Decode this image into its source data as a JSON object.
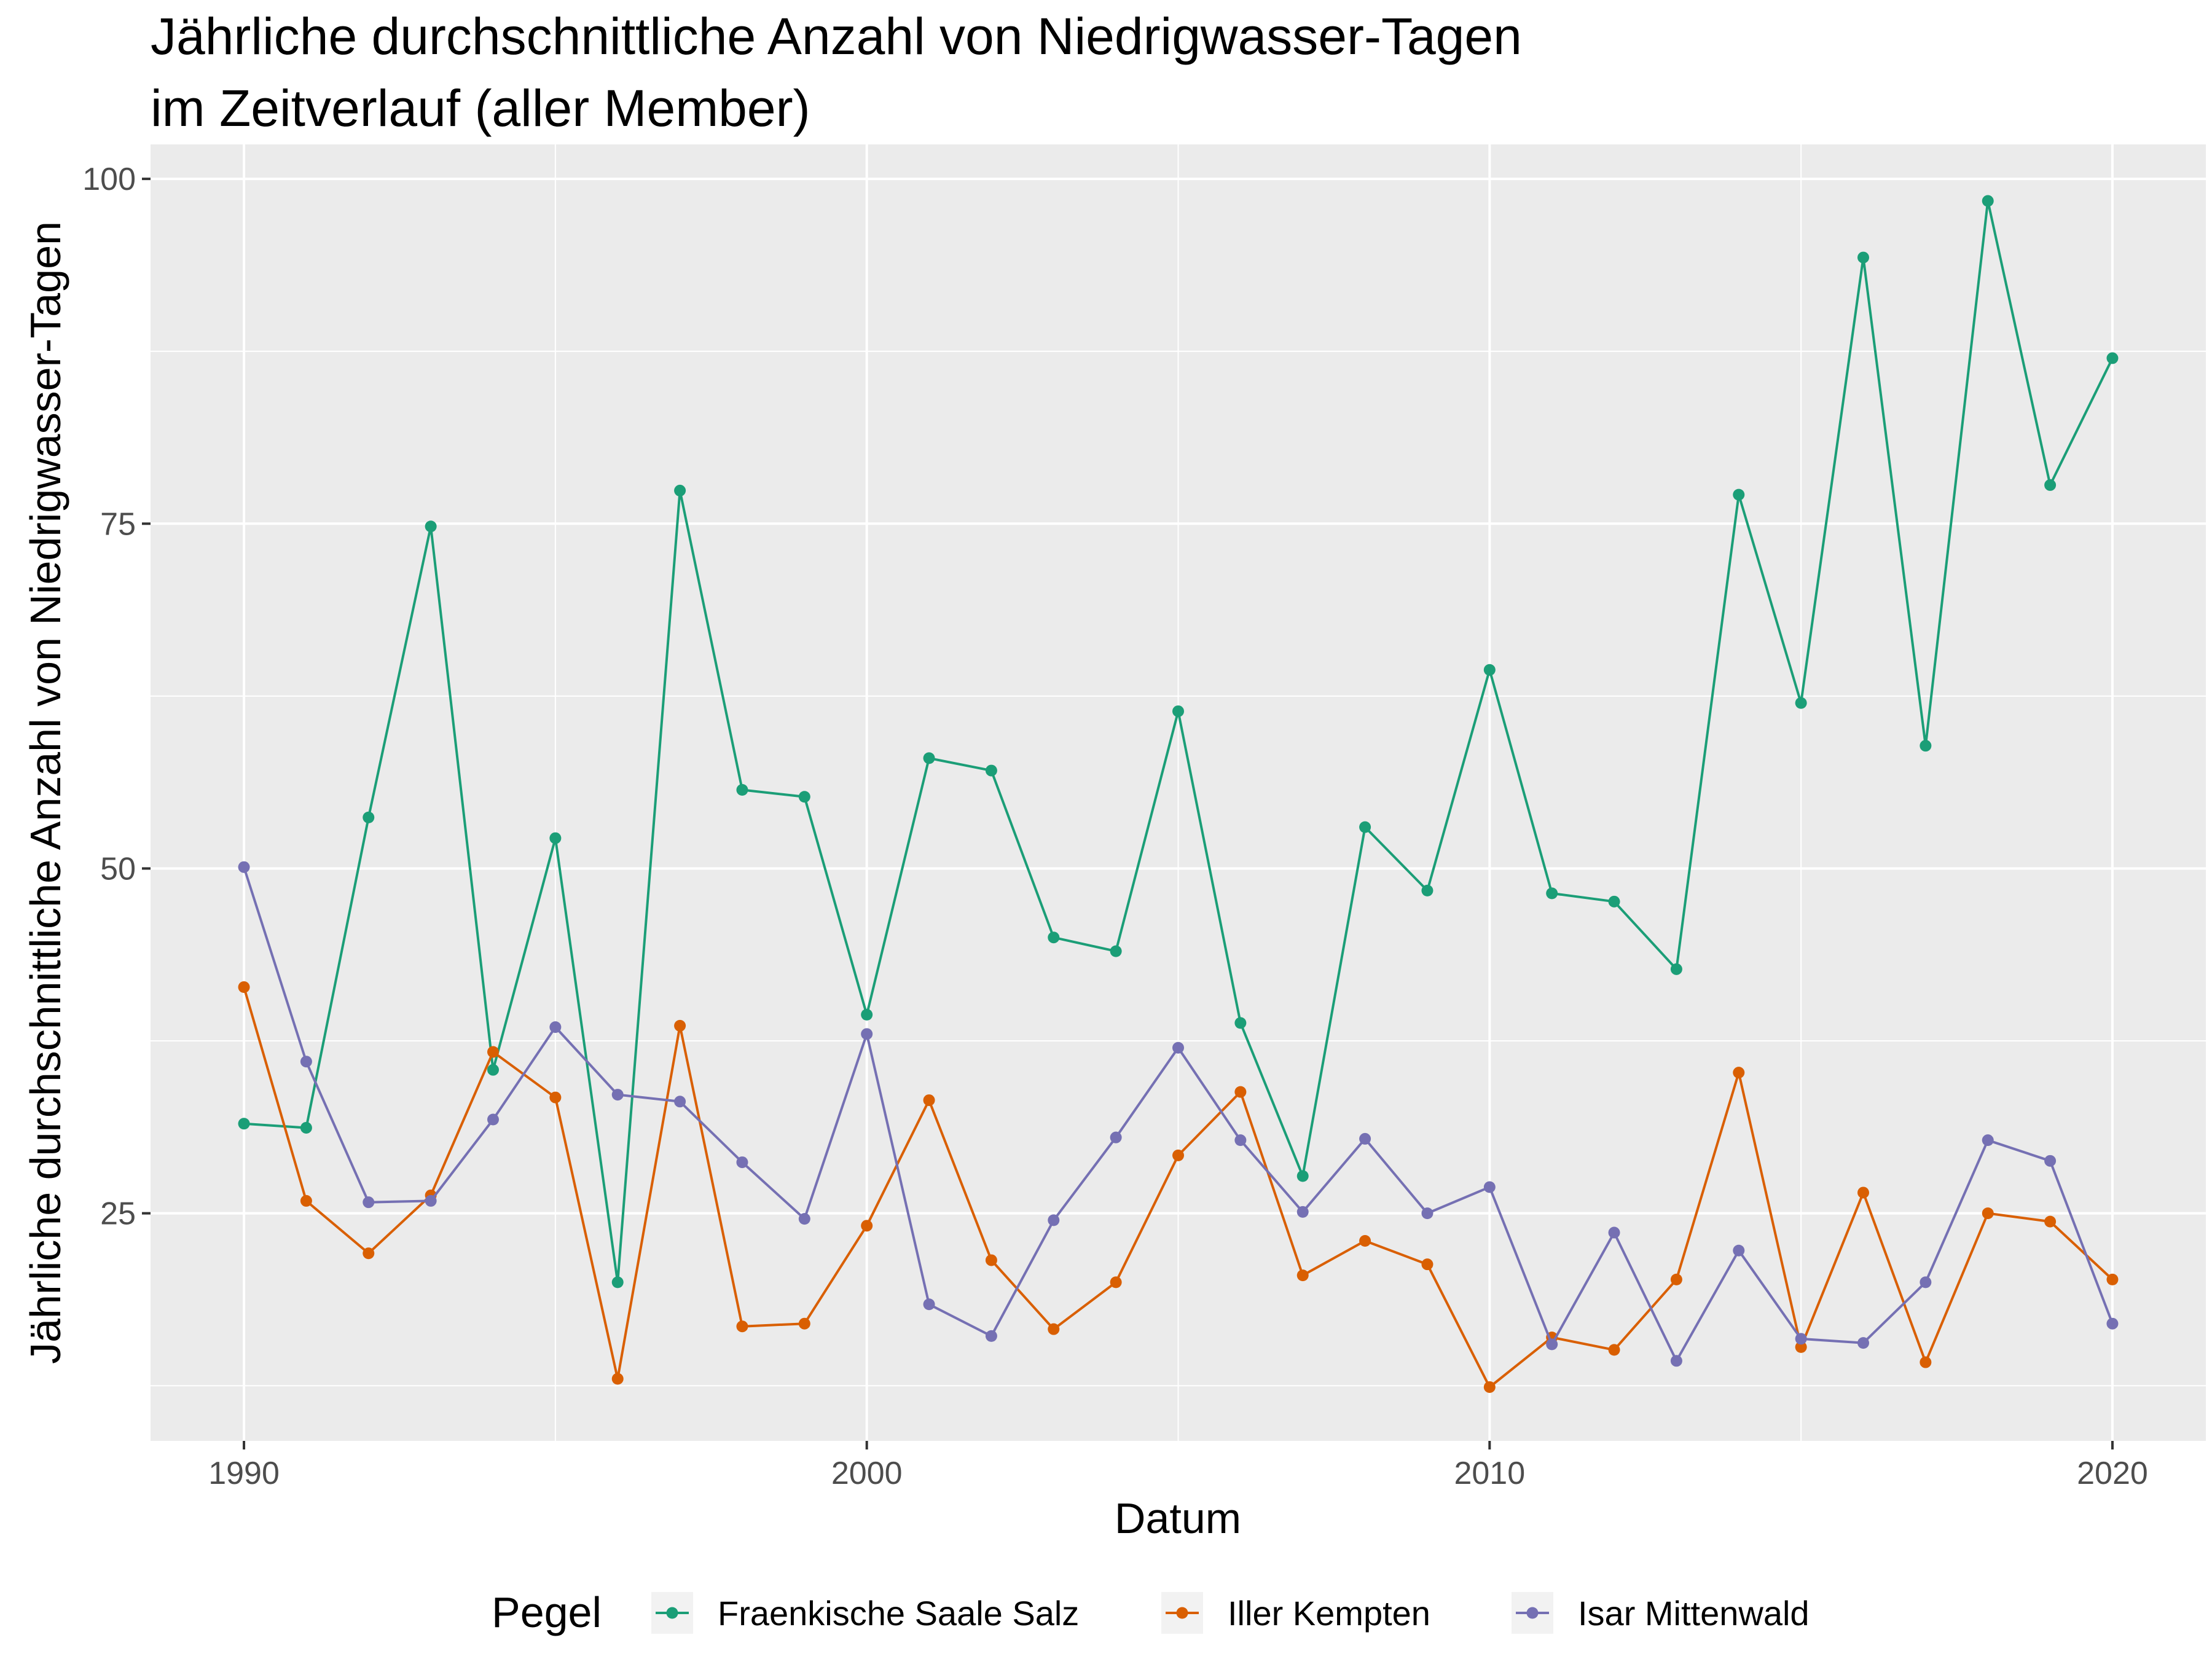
{
  "chart_data": {
    "type": "line",
    "title": "Jährliche durchschnittliche Anzahl von Niedrigwasser-Tagen",
    "subtitle": "im Zeitverlauf (aller Member)",
    "xlabel": "Datum",
    "ylabel": "Jährliche durchschnittliche Anzahl von Niedrigwasser-Tagen",
    "xlim": [
      1988.5,
      2021.5
    ],
    "ylim": [
      8.5,
      102.5
    ],
    "x_ticks": [
      1990,
      2000,
      2010,
      2020
    ],
    "x_tick_labels": [
      "1990",
      "2000",
      "2010",
      "2020"
    ],
    "y_ticks": [
      25,
      50,
      75,
      100
    ],
    "y_tick_labels": [
      "25",
      "50",
      "75",
      "100"
    ],
    "grid": true,
    "legend": {
      "title": "Pegel",
      "position": "bottom"
    },
    "x": [
      1990,
      1991,
      1992,
      1993,
      1994,
      1995,
      1996,
      1997,
      1998,
      1999,
      2000,
      2001,
      2002,
      2003,
      2004,
      2005,
      2006,
      2007,
      2008,
      2009,
      2010,
      2011,
      2012,
      2013,
      2014,
      2015,
      2016,
      2017,
      2018,
      2019,
      2020
    ],
    "series": [
      {
        "name": "Fraenkische Saale Salz",
        "color": "#1b9e77",
        "values": [
          31.5,
          31.2,
          53.7,
          74.8,
          35.4,
          52.2,
          20.0,
          77.4,
          55.7,
          55.2,
          39.4,
          58.0,
          57.1,
          45.0,
          44.0,
          61.4,
          38.8,
          27.7,
          53.0,
          48.4,
          64.4,
          48.2,
          47.6,
          42.7,
          77.1,
          62.0,
          94.3,
          58.9,
          98.4,
          77.8,
          87.0
        ]
      },
      {
        "name": "Iller Kempten",
        "color": "#d95f02",
        "values": [
          41.4,
          25.9,
          22.1,
          26.3,
          36.7,
          33.4,
          13.0,
          38.6,
          16.8,
          17.0,
          24.1,
          33.2,
          21.6,
          16.6,
          20.0,
          29.2,
          33.8,
          20.5,
          23.0,
          21.3,
          12.4,
          16.0,
          15.1,
          20.2,
          35.2,
          15.3,
          26.5,
          14.2,
          25.0,
          24.4,
          20.2
        ]
      },
      {
        "name": "Isar Mittenwald",
        "color": "#7570b3",
        "values": [
          50.1,
          36.0,
          25.8,
          25.9,
          31.8,
          38.5,
          33.6,
          33.1,
          28.7,
          24.6,
          38.0,
          18.4,
          16.1,
          24.5,
          30.5,
          37.0,
          30.3,
          25.1,
          30.4,
          25.0,
          26.9,
          15.5,
          23.6,
          14.3,
          22.3,
          15.9,
          15.6,
          20.0,
          30.3,
          28.8,
          17.0
        ]
      }
    ]
  }
}
